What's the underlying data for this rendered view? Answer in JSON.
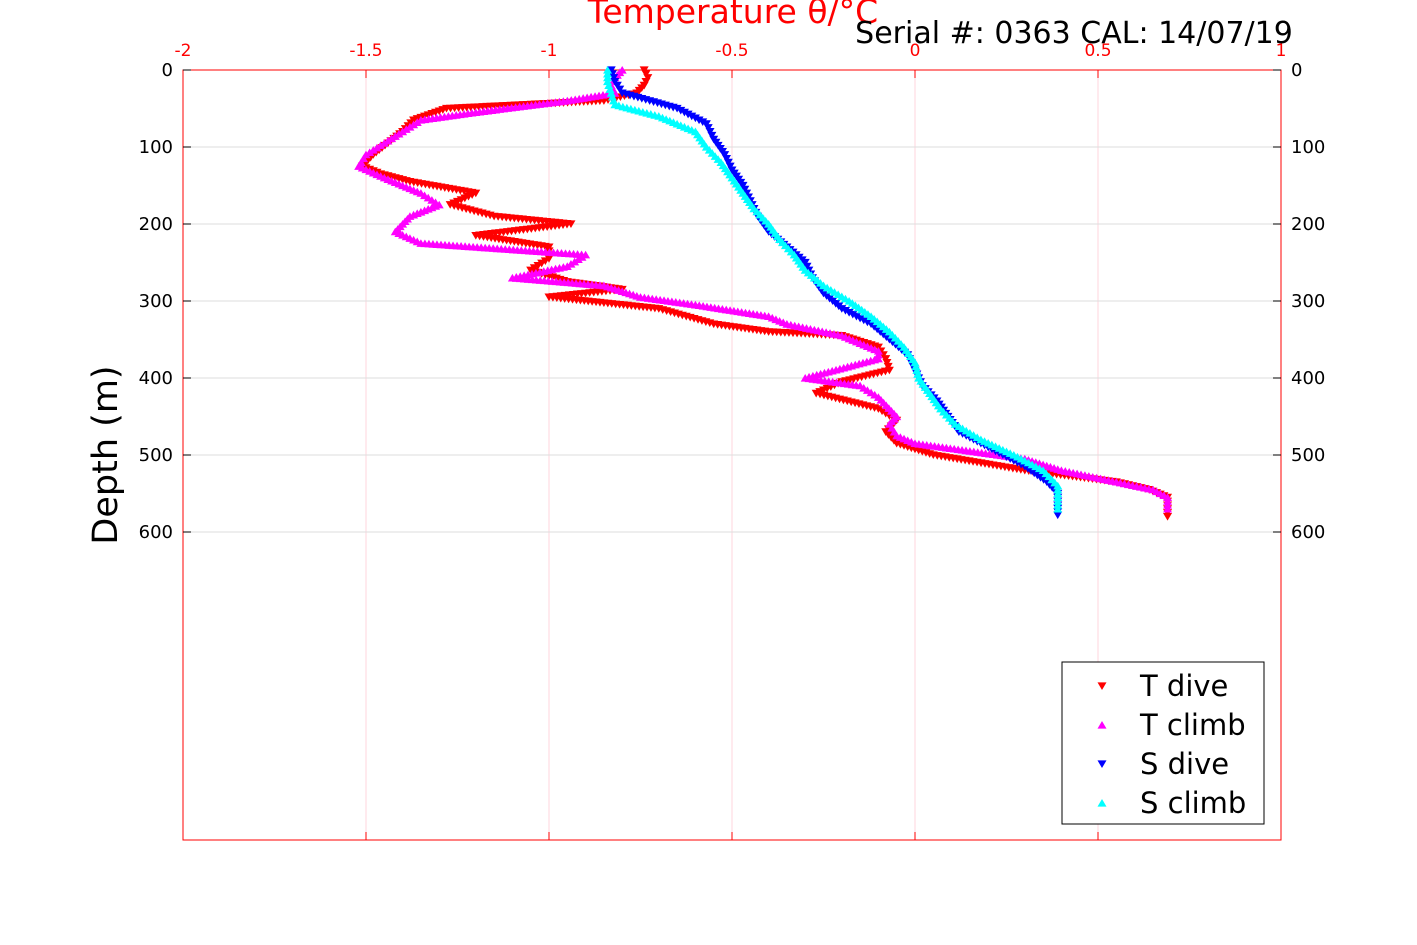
{
  "header": {
    "serial_text": "Serial #: 0363  CAL: 14/07/19"
  },
  "chart_data": {
    "type": "scatter",
    "title": "Temperature θ/°C",
    "xlabel": "Temperature θ/°C",
    "ylabel": "Depth (m)",
    "xlim": [
      -2,
      1
    ],
    "ylim": [
      0,
      1000
    ],
    "y_reversed": true,
    "x_ticks": [
      "-2",
      "-1.5",
      "-1",
      "-0.5",
      "0",
      "0.5",
      "1"
    ],
    "y_ticks": [
      "0",
      "100",
      "200",
      "300",
      "400",
      "500",
      "600"
    ],
    "grid": true,
    "legend_position": "bottom-right",
    "series": [
      {
        "name": "T dive",
        "marker": "triangle-down",
        "color": "#ff0000",
        "points": [
          [
            -0.74,
            0
          ],
          [
            -0.73,
            10
          ],
          [
            -0.74,
            20
          ],
          [
            -0.76,
            30
          ],
          [
            -0.85,
            40
          ],
          [
            -1.28,
            50
          ],
          [
            -1.37,
            65
          ],
          [
            -1.4,
            80
          ],
          [
            -1.44,
            95
          ],
          [
            -1.48,
            110
          ],
          [
            -1.51,
            125
          ],
          [
            -1.46,
            135
          ],
          [
            -1.38,
            145
          ],
          [
            -1.2,
            160
          ],
          [
            -1.27,
            175
          ],
          [
            -1.15,
            190
          ],
          [
            -0.94,
            200
          ],
          [
            -1.2,
            215
          ],
          [
            -1.0,
            230
          ],
          [
            -1.0,
            245
          ],
          [
            -1.05,
            260
          ],
          [
            -0.95,
            275
          ],
          [
            -0.8,
            285
          ],
          [
            -1.0,
            295
          ],
          [
            -0.7,
            310
          ],
          [
            -0.55,
            330
          ],
          [
            -0.4,
            340
          ],
          [
            -0.2,
            345
          ],
          [
            -0.1,
            360
          ],
          [
            -0.08,
            375
          ],
          [
            -0.07,
            390
          ],
          [
            -0.2,
            405
          ],
          [
            -0.27,
            420
          ],
          [
            -0.1,
            440
          ],
          [
            -0.05,
            455
          ],
          [
            -0.08,
            470
          ],
          [
            -0.05,
            485
          ],
          [
            0.05,
            500
          ],
          [
            0.3,
            520
          ],
          [
            0.55,
            535
          ],
          [
            0.64,
            545
          ],
          [
            0.69,
            555
          ],
          [
            0.69,
            565
          ],
          [
            0.69,
            580
          ]
        ]
      },
      {
        "name": "T climb",
        "marker": "triangle-up",
        "color": "#ff00ff",
        "points": [
          [
            -0.8,
            0
          ],
          [
            -0.82,
            10
          ],
          [
            -0.83,
            20
          ],
          [
            -0.82,
            30
          ],
          [
            -0.95,
            40
          ],
          [
            -1.2,
            55
          ],
          [
            -1.35,
            65
          ],
          [
            -1.4,
            80
          ],
          [
            -1.45,
            95
          ],
          [
            -1.5,
            110
          ],
          [
            -1.52,
            125
          ],
          [
            -1.45,
            140
          ],
          [
            -1.35,
            160
          ],
          [
            -1.3,
            175
          ],
          [
            -1.38,
            190
          ],
          [
            -1.4,
            200
          ],
          [
            -1.42,
            210
          ],
          [
            -1.35,
            225
          ],
          [
            -0.9,
            240
          ],
          [
            -0.95,
            255
          ],
          [
            -1.1,
            270
          ],
          [
            -0.85,
            280
          ],
          [
            -0.75,
            295
          ],
          [
            -0.6,
            305
          ],
          [
            -0.4,
            320
          ],
          [
            -0.35,
            330
          ],
          [
            -0.2,
            345
          ],
          [
            -0.1,
            365
          ],
          [
            -0.1,
            375
          ],
          [
            -0.3,
            400
          ],
          [
            -0.15,
            410
          ],
          [
            -0.1,
            425
          ],
          [
            -0.05,
            450
          ],
          [
            -0.07,
            460
          ],
          [
            -0.05,
            475
          ],
          [
            0.0,
            485
          ],
          [
            0.3,
            505
          ],
          [
            0.4,
            520
          ],
          [
            0.55,
            535
          ],
          [
            0.65,
            545
          ],
          [
            0.69,
            555
          ],
          [
            0.69,
            570
          ]
        ]
      },
      {
        "name": "S dive",
        "marker": "triangle-down",
        "color": "#0000ff",
        "points": [
          [
            -0.83,
            0
          ],
          [
            -0.82,
            15
          ],
          [
            -0.8,
            30
          ],
          [
            -0.65,
            50
          ],
          [
            -0.57,
            70
          ],
          [
            -0.55,
            90
          ],
          [
            -0.52,
            110
          ],
          [
            -0.5,
            130
          ],
          [
            -0.47,
            150
          ],
          [
            -0.45,
            170
          ],
          [
            -0.43,
            190
          ],
          [
            -0.4,
            210
          ],
          [
            -0.35,
            230
          ],
          [
            -0.3,
            250
          ],
          [
            -0.28,
            270
          ],
          [
            -0.25,
            290
          ],
          [
            -0.2,
            310
          ],
          [
            -0.12,
            330
          ],
          [
            -0.07,
            350
          ],
          [
            -0.02,
            370
          ],
          [
            0.0,
            390
          ],
          [
            0.02,
            410
          ],
          [
            0.06,
            430
          ],
          [
            0.09,
            450
          ],
          [
            0.12,
            470
          ],
          [
            0.2,
            490
          ],
          [
            0.3,
            515
          ],
          [
            0.36,
            535
          ],
          [
            0.39,
            550
          ],
          [
            0.39,
            565
          ],
          [
            0.39,
            578
          ]
        ]
      },
      {
        "name": "S climb",
        "marker": "triangle-up",
        "color": "#00ffff",
        "points": [
          [
            -0.84,
            0
          ],
          [
            -0.84,
            15
          ],
          [
            -0.83,
            30
          ],
          [
            -0.82,
            45
          ],
          [
            -0.7,
            60
          ],
          [
            -0.6,
            80
          ],
          [
            -0.57,
            100
          ],
          [
            -0.53,
            120
          ],
          [
            -0.5,
            140
          ],
          [
            -0.47,
            160
          ],
          [
            -0.44,
            180
          ],
          [
            -0.4,
            200
          ],
          [
            -0.37,
            220
          ],
          [
            -0.33,
            240
          ],
          [
            -0.3,
            260
          ],
          [
            -0.25,
            280
          ],
          [
            -0.18,
            300
          ],
          [
            -0.12,
            320
          ],
          [
            -0.07,
            340
          ],
          [
            -0.03,
            360
          ],
          [
            0.0,
            380
          ],
          [
            0.01,
            400
          ],
          [
            0.04,
            420
          ],
          [
            0.07,
            440
          ],
          [
            0.11,
            460
          ],
          [
            0.18,
            480
          ],
          [
            0.27,
            500
          ],
          [
            0.35,
            520
          ],
          [
            0.39,
            540
          ],
          [
            0.39,
            555
          ],
          [
            0.39,
            570
          ]
        ]
      }
    ]
  }
}
